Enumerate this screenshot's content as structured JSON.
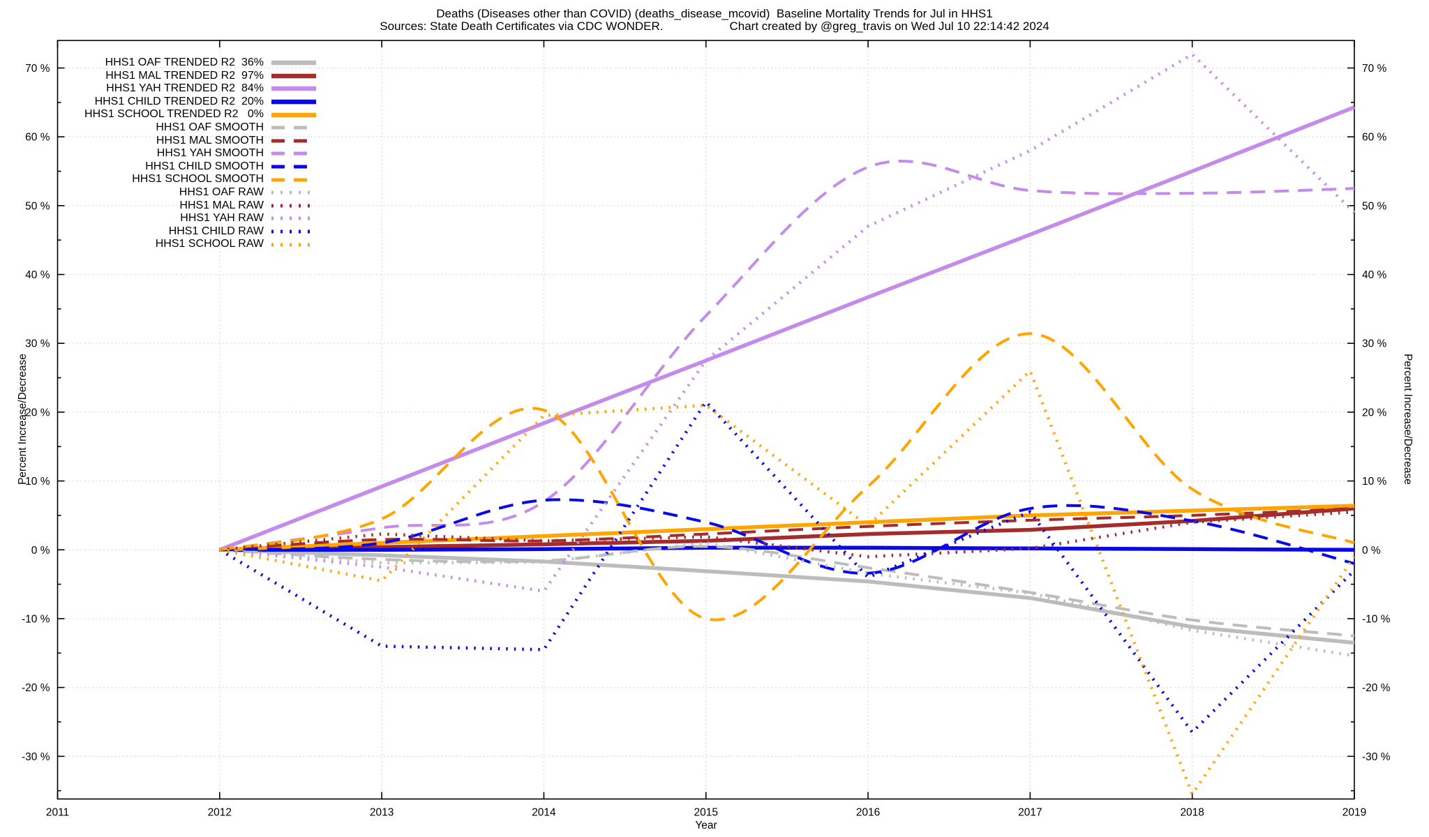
{
  "title": {
    "line1": "Deaths (Diseases other than COVID) (deaths_disease_mcovid)  Baseline Mortality Trends for Jul in HHS1",
    "sources": "Sources: State Death Certificates via CDC WONDER.",
    "credit": "Chart created by @greg_travis on Wed Jul 10 22:14:42 2024"
  },
  "chart_data": {
    "type": "line",
    "title": "Deaths (Diseases other than COVID) (deaths_disease_mcovid)  Baseline Mortality Trends for Jul in HHS1",
    "subtitle": "Sources: State Death Certificates via CDC WONDER.          Chart created by @greg_travis on Wed Jul 10 22:14:42 2024",
    "xlabel": "Year",
    "ylabel_left": "Percent Increase/Decrease",
    "ylabel_right": "Percent Increase/Decrease",
    "xlim": [
      2011,
      2019
    ],
    "ylim": [
      -36.2,
      74.0
    ],
    "xticks": [
      2011,
      2012,
      2013,
      2014,
      2015,
      2016,
      2017,
      2018,
      2019
    ],
    "yticks": [
      -30,
      -20,
      -10,
      0,
      10,
      20,
      30,
      40,
      50,
      60,
      70
    ],
    "ytick_suffix": " %",
    "grid": true,
    "legend_position": "top-left",
    "x": [
      2012,
      2013,
      2014,
      2015,
      2016,
      2017,
      2018,
      2019
    ],
    "series": [
      {
        "id": "oaf-trended",
        "label": "HHS1 OAF TRENDED R2  36%",
        "group": "trended",
        "r2": "36%",
        "style": "solid",
        "color": "#bcbcbc",
        "values": [
          0,
          -0.8,
          -1.7,
          -3.1,
          -4.6,
          -7.0,
          -11.2,
          -13.5
        ]
      },
      {
        "id": "mal-trended",
        "label": "HHS1 MAL TRENDED R2  97%",
        "group": "trended",
        "r2": "97%",
        "style": "solid",
        "color": "#a52c2c",
        "values": [
          0,
          0.4,
          0.8,
          1.3,
          2.3,
          2.9,
          4.2,
          6.0
        ]
      },
      {
        "id": "yah-trended",
        "label": "HHS1 YAH TRENDED R2  84%",
        "group": "trended",
        "r2": "84%",
        "style": "solid",
        "color": "#c48bea",
        "values": [
          0,
          9.2,
          18.4,
          27.5,
          36.7,
          45.8,
          55.0,
          64.3
        ]
      },
      {
        "id": "child-trended",
        "label": "HHS1 CHILD TRENDED R2  20%",
        "group": "trended",
        "r2": "20%",
        "style": "solid",
        "color": "#0808e8",
        "values": [
          0,
          0.0,
          0.1,
          0.3,
          0.3,
          0.2,
          0.1,
          0.0
        ]
      },
      {
        "id": "school-trended",
        "label": "HHS1 SCHOOL TRENDED R2   0%",
        "group": "trended",
        "r2": "0%",
        "style": "solid",
        "color": "#ffa400",
        "values": [
          0,
          1.0,
          2.0,
          3.0,
          4.0,
          5.0,
          5.7,
          6.4
        ]
      },
      {
        "id": "oaf-smooth",
        "label": "HHS1 OAF SMOOTH",
        "group": "smooth",
        "style": "smooth",
        "color": "#bcbcbc",
        "values": [
          0,
          -1.4,
          -1.6,
          0.5,
          -2.6,
          -6.2,
          -10.2,
          -12.5
        ]
      },
      {
        "id": "mal-smooth",
        "label": "HHS1 MAL SMOOTH",
        "group": "smooth",
        "style": "smooth",
        "color": "#a52c2c",
        "values": [
          0,
          1.5,
          1.3,
          2.3,
          3.4,
          4.3,
          5.0,
          6.0
        ]
      },
      {
        "id": "yah-smooth",
        "label": "HHS1 YAH SMOOTH",
        "group": "smooth",
        "style": "smooth",
        "color": "#c48bea",
        "values": [
          0,
          3.2,
          7.0,
          34.0,
          55.6,
          52.2,
          51.8,
          52.5
        ]
      },
      {
        "id": "child-smooth",
        "label": "HHS1 CHILD SMOOTH",
        "group": "smooth",
        "style": "smooth",
        "color": "#0808e8",
        "values": [
          0,
          1.0,
          7.2,
          4.0,
          -3.4,
          6.0,
          4.2,
          -2.0
        ]
      },
      {
        "id": "school-smooth",
        "label": "HHS1 SCHOOL SMOOTH",
        "group": "smooth",
        "style": "smooth",
        "color": "#ffa400",
        "values": [
          0,
          4.5,
          20.3,
          -10.0,
          9.2,
          31.4,
          8.8,
          1.0
        ]
      },
      {
        "id": "oaf-raw",
        "label": "HHS1 OAF RAW",
        "group": "raw",
        "style": "raw",
        "color": "#bcbcbc",
        "values": [
          0,
          -1.9,
          -1.8,
          1.0,
          -3.4,
          -6.3,
          -11.7,
          -15.4
        ]
      },
      {
        "id": "mal-raw",
        "label": "HHS1 MAL RAW",
        "group": "raw",
        "style": "raw",
        "color": "#a52c2c",
        "values": [
          0,
          2.3,
          1.3,
          1.9,
          -1.0,
          0.2,
          4.0,
          5.5
        ]
      },
      {
        "id": "yah-raw",
        "label": "HHS1 YAH RAW",
        "group": "raw",
        "style": "raw",
        "color": "#c48bea",
        "values": [
          0,
          -2.5,
          -6.0,
          27.5,
          47.0,
          58.0,
          72.0,
          49.0
        ]
      },
      {
        "id": "child-raw",
        "label": "HHS1 CHILD RAW",
        "group": "raw",
        "style": "raw",
        "color": "#0808e8",
        "values": [
          0,
          -14.0,
          -14.5,
          21.5,
          -4.0,
          5.5,
          -26.5,
          -3.0
        ]
      },
      {
        "id": "school-raw",
        "label": "HHS1 SCHOOL RAW",
        "group": "raw",
        "style": "raw",
        "color": "#ffa400",
        "values": [
          0,
          -4.5,
          19.5,
          21.0,
          3.5,
          26.0,
          -35.5,
          -1.0
        ]
      }
    ]
  }
}
